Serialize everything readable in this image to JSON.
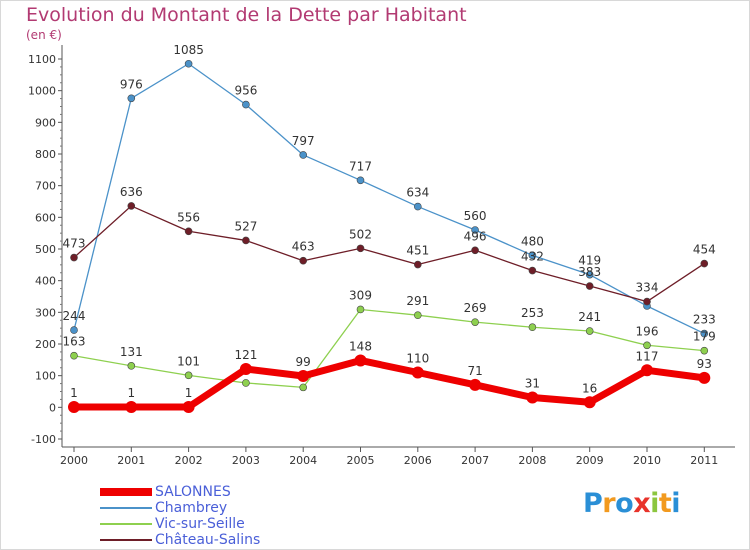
{
  "chart_data": {
    "type": "line",
    "title": "Evolution du Montant de la Dette par Habitant",
    "subtitle": "(en €)",
    "x": [
      "2000",
      "2001",
      "2002",
      "2003",
      "2004",
      "2005",
      "2006",
      "2007",
      "2008",
      "2009",
      "2010",
      "2011"
    ],
    "ylim": [
      -100,
      1100
    ],
    "yticks": [
      -100,
      0,
      100,
      200,
      300,
      400,
      500,
      600,
      700,
      800,
      900,
      1000,
      1100
    ],
    "grid": false,
    "legend_position": "bottom-left",
    "series": [
      {
        "name": "SALONNES",
        "color": "#ee0000",
        "values": [
          1,
          1,
          1,
          121,
          99,
          148,
          110,
          71,
          31,
          16,
          117,
          93
        ]
      },
      {
        "name": "Chambrey",
        "color": "#4b92c9",
        "values": [
          244,
          976,
          1085,
          956,
          797,
          717,
          634,
          560,
          480,
          419,
          320,
          233
        ]
      },
      {
        "name": "Vic-sur-Seille",
        "color": "#8ed04f",
        "values": [
          163,
          131,
          101,
          77,
          63,
          309,
          291,
          269,
          253,
          241,
          196,
          179
        ]
      },
      {
        "name": "Château-Salins",
        "color": "#6e1e28",
        "values": [
          473,
          636,
          556,
          527,
          463,
          502,
          451,
          496,
          432,
          383,
          334,
          454
        ]
      }
    ],
    "point_labels": {
      "SALONNES": [
        "1",
        "1",
        "1",
        "121",
        "99",
        "148",
        "110",
        "71",
        "31",
        "16",
        "117",
        "93"
      ],
      "Chambrey": [
        "244",
        "976",
        "1085",
        "956",
        "797",
        "717",
        "634",
        "560",
        "480",
        "419",
        "",
        "233"
      ],
      "Vic-sur-Seille": [
        "163",
        "131",
        "101",
        "",
        "",
        "309",
        "291",
        "269",
        "253",
        "241",
        "196",
        "179"
      ],
      "Château-Salins": [
        "473",
        "636",
        "556",
        "527",
        "463",
        "502",
        "451",
        "496",
        "432",
        "383",
        "334",
        "454"
      ]
    }
  },
  "logo": {
    "text": "Proxiti",
    "letters": [
      "P",
      "r",
      "o",
      "x",
      "i",
      "t",
      "i"
    ],
    "colors": [
      "#2a8fd6",
      "#f29a1f",
      "#2a8fd6",
      "#e8332b",
      "#8cc63f",
      "#f29a1f",
      "#2a8fd6"
    ]
  }
}
